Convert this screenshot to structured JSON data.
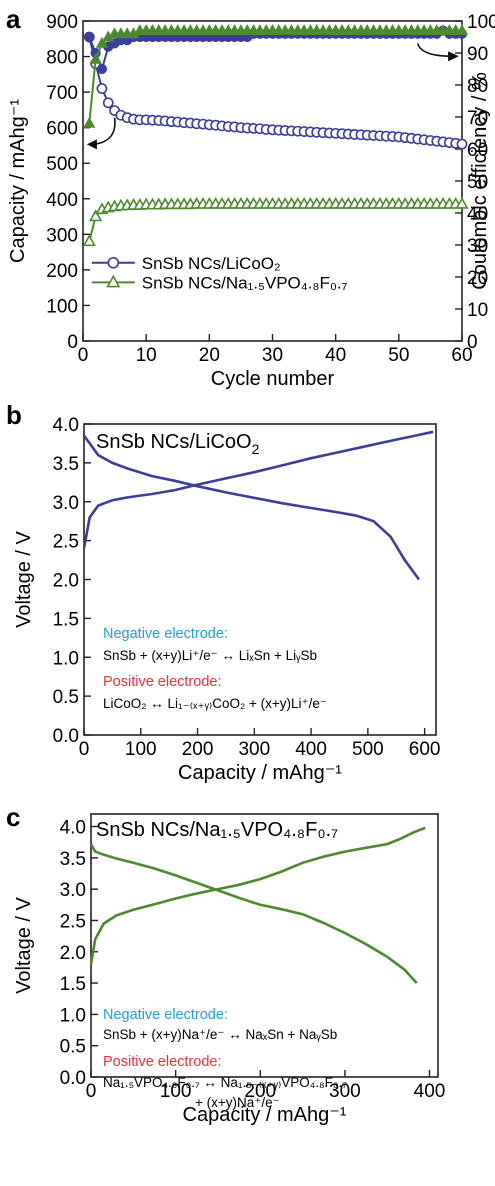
{
  "panels": {
    "a": {
      "letter": "a"
    },
    "b": {
      "letter": "b",
      "title": "SnSb NCs/LiCoO",
      "title_sub": "2",
      "neg_header": "Negative electrode:",
      "neg_eq": "SnSb + (x+y)Li⁺/e⁻ ↔ LiₓSn + LiᵧSb",
      "pos_header": "Positive electrode:",
      "pos_eq": "LiCoO₂ ↔ Li₁₋₍ₓ₊ᵧ₎CoO₂ + (x+y)Li⁺/e⁻"
    },
    "c": {
      "letter": "c",
      "title": "SnSb NCs/Na₁.₅VPO₄.₈F₀.₇",
      "neg_header": "Negative electrode:",
      "neg_eq": "SnSb + (x+y)Na⁺/e⁻ ↔ NaₓSn + NaᵧSb",
      "pos_header": "Positive electrode:",
      "pos_eq1": "Na₁.₅VPO₄.₈F₀.₇ ↔ Na₁.₅₋₍ₓ₊ᵧ₎VPO₄.₈F₀.₇",
      "pos_eq2": "+ (x+y)Na⁺/e⁻"
    }
  },
  "chart_data": [
    {
      "type": "line",
      "xlabel": "Cycle number",
      "ylabel": "Capacity / mAhg⁻¹",
      "y2label": "Coulombic efficiency / %",
      "xlim": [
        0,
        60
      ],
      "ylim": [
        0,
        900
      ],
      "y2lim": [
        0,
        100
      ],
      "x_ticks": [
        0,
        10,
        20,
        30,
        40,
        50,
        60
      ],
      "y_ticks": [
        0,
        100,
        200,
        300,
        400,
        500,
        600,
        700,
        800,
        900
      ],
      "y2_ticks": [
        0,
        10,
        20,
        30,
        40,
        50,
        60,
        70,
        80,
        90,
        100
      ],
      "colors": {
        "licoo2": "#3b3f99",
        "navpof": "#4d8a2f"
      },
      "series": [
        {
          "name": "SnSb NCs/LiCoO₂",
          "axis": "capacity",
          "marker": "circle",
          "x": [
            1,
            2,
            3,
            4,
            5,
            6,
            7,
            8,
            9,
            10,
            11,
            12,
            13,
            14,
            15,
            16,
            17,
            18,
            19,
            20,
            21,
            22,
            23,
            24,
            25,
            26,
            27,
            28,
            29,
            30,
            31,
            32,
            33,
            34,
            35,
            36,
            37,
            38,
            39,
            40,
            41,
            42,
            43,
            44,
            45,
            46,
            47,
            48,
            49,
            50,
            51,
            52,
            53,
            54,
            55,
            56,
            57,
            58,
            59,
            60
          ],
          "y": [
            855,
            780,
            710,
            670,
            648,
            635,
            628,
            624,
            622,
            622,
            621,
            620,
            619,
            617,
            616,
            614,
            613,
            611,
            610,
            608,
            607,
            605,
            603,
            602,
            600,
            599,
            598,
            597,
            595,
            594,
            593,
            592,
            591,
            590,
            589,
            588,
            587,
            586,
            585,
            584,
            583,
            582,
            581,
            580,
            579,
            578,
            577,
            576,
            575,
            574,
            572,
            570,
            568,
            566,
            564,
            562,
            560,
            558,
            556,
            554
          ]
        },
        {
          "name": "SnSb NCs/Na₁.₅VPO₄.₈F₀.₇",
          "axis": "capacity",
          "marker": "triangle",
          "x": [
            1,
            2,
            3,
            4,
            5,
            6,
            7,
            8,
            9,
            10,
            11,
            12,
            13,
            14,
            15,
            16,
            17,
            18,
            19,
            20,
            21,
            22,
            23,
            24,
            25,
            26,
            27,
            28,
            29,
            30,
            31,
            32,
            33,
            34,
            35,
            36,
            37,
            38,
            39,
            40,
            41,
            42,
            43,
            44,
            45,
            46,
            47,
            48,
            49,
            50,
            51,
            52,
            53,
            54,
            55,
            56,
            57,
            58,
            59,
            60
          ],
          "y": [
            280,
            350,
            370,
            375,
            378,
            380,
            381,
            382,
            382,
            383,
            383,
            383,
            384,
            384,
            384,
            384,
            384,
            385,
            385,
            385,
            385,
            385,
            385,
            385,
            385,
            385,
            385,
            385,
            385,
            385,
            385,
            385,
            385,
            385,
            385,
            385,
            385,
            385,
            385,
            385,
            385,
            385,
            385,
            385,
            385,
            385,
            385,
            385,
            385,
            385,
            385,
            385,
            385,
            385,
            385,
            385,
            385,
            385,
            385,
            385
          ]
        },
        {
          "name": "",
          "axis": "efficiency",
          "marker": "circle-filled",
          "x": [
            1,
            2,
            3,
            4,
            5,
            6,
            7,
            8,
            9,
            10,
            11,
            12,
            13,
            14,
            15,
            16,
            17,
            18,
            19,
            20,
            21,
            22,
            23,
            24,
            25,
            26,
            27,
            28,
            29,
            30,
            31,
            32,
            33,
            34,
            35,
            36,
            37,
            38,
            39,
            40,
            41,
            42,
            43,
            44,
            45,
            46,
            47,
            48,
            49,
            50,
            51,
            52,
            53,
            54,
            55,
            56,
            57,
            58,
            59,
            60
          ],
          "y": [
            95,
            90,
            85,
            92,
            93,
            94,
            94,
            95,
            95,
            95,
            95,
            95,
            95,
            95,
            95,
            95,
            95,
            95,
            95,
            95,
            95,
            95,
            95,
            95,
            95,
            95,
            96,
            96,
            96,
            96,
            96,
            96,
            96,
            96,
            96,
            96,
            96,
            96,
            96,
            96,
            96,
            96,
            96,
            96,
            96,
            96,
            96,
            96,
            96,
            96,
            96,
            96,
            96,
            96,
            96,
            96,
            97,
            96,
            96,
            96
          ]
        },
        {
          "name": "",
          "axis": "efficiency",
          "marker": "triangle-filled",
          "x": [
            1,
            2,
            3,
            4,
            5,
            6,
            7,
            8,
            9,
            10,
            11,
            12,
            13,
            14,
            15,
            16,
            17,
            18,
            19,
            20,
            21,
            22,
            23,
            24,
            25,
            26,
            27,
            28,
            29,
            30,
            31,
            32,
            33,
            34,
            35,
            36,
            37,
            38,
            39,
            40,
            41,
            42,
            43,
            44,
            45,
            46,
            47,
            48,
            49,
            50,
            51,
            52,
            53,
            54,
            55,
            56,
            57,
            58,
            59,
            60
          ],
          "y": [
            68,
            88,
            93,
            95,
            96,
            96,
            96,
            96,
            97,
            97,
            97,
            97,
            97,
            97,
            97,
            97,
            97,
            97,
            97,
            97,
            97,
            97,
            97,
            97,
            97,
            97,
            97,
            97,
            97,
            97,
            97,
            97,
            97,
            97,
            97,
            97,
            97,
            97,
            97,
            97,
            97,
            97,
            97,
            97,
            97,
            97,
            97,
            97,
            97,
            97,
            97,
            97,
            97,
            97,
            97,
            97,
            97,
            97,
            97,
            97
          ]
        }
      ]
    },
    {
      "type": "line",
      "xlabel": "Capacity / mAhg⁻¹",
      "ylabel": "Voltage / V",
      "xlim": [
        0,
        620
      ],
      "ylim": [
        0,
        4.0
      ],
      "x_ticks": [
        0,
        100,
        200,
        300,
        400,
        500,
        600
      ],
      "y_ticks": [
        0.0,
        0.5,
        1.0,
        1.5,
        2.0,
        2.5,
        3.0,
        3.5,
        4.0
      ],
      "color": "#3b3f99",
      "series": [
        {
          "name": "",
          "x": [
            0,
            10,
            25,
            50,
            80,
            120,
            160,
            200,
            250,
            300,
            350,
            400,
            450,
            500,
            550,
            590,
            615
          ],
          "y": [
            2.4,
            2.8,
            2.95,
            3.02,
            3.06,
            3.1,
            3.15,
            3.22,
            3.3,
            3.38,
            3.47,
            3.56,
            3.64,
            3.72,
            3.8,
            3.86,
            3.9
          ]
        },
        {
          "name": "",
          "x": [
            0,
            10,
            25,
            50,
            80,
            120,
            160,
            200,
            250,
            300,
            350,
            400,
            450,
            480,
            510,
            540,
            565,
            590
          ],
          "y": [
            3.85,
            3.75,
            3.6,
            3.5,
            3.42,
            3.33,
            3.27,
            3.2,
            3.12,
            3.05,
            2.98,
            2.92,
            2.86,
            2.82,
            2.75,
            2.55,
            2.25,
            2.0
          ]
        }
      ]
    },
    {
      "type": "line",
      "xlabel": "Capacity / mAhg⁻¹",
      "ylabel": "Voltage / V",
      "xlim": [
        0,
        410
      ],
      "ylim": [
        0,
        4.2
      ],
      "x_ticks": [
        0,
        100,
        200,
        300,
        400
      ],
      "y_ticks": [
        0.0,
        0.5,
        1.0,
        1.5,
        2.0,
        2.5,
        3.0,
        3.5,
        4.0
      ],
      "color": "#4d8a2f",
      "series": [
        {
          "name": "",
          "x": [
            0,
            5,
            15,
            30,
            50,
            75,
            100,
            125,
            150,
            175,
            200,
            225,
            250,
            275,
            300,
            325,
            350,
            365,
            380,
            395
          ],
          "y": [
            1.8,
            2.2,
            2.45,
            2.58,
            2.67,
            2.76,
            2.85,
            2.93,
            3.0,
            3.07,
            3.16,
            3.28,
            3.42,
            3.52,
            3.6,
            3.66,
            3.72,
            3.8,
            3.9,
            3.98
          ]
        },
        {
          "name": "",
          "x": [
            0,
            5,
            15,
            30,
            50,
            75,
            100,
            125,
            150,
            175,
            200,
            225,
            250,
            275,
            300,
            325,
            350,
            370,
            385
          ],
          "y": [
            3.72,
            3.6,
            3.55,
            3.49,
            3.42,
            3.33,
            3.22,
            3.1,
            2.98,
            2.86,
            2.75,
            2.68,
            2.6,
            2.46,
            2.3,
            2.12,
            1.92,
            1.72,
            1.5
          ]
        }
      ]
    }
  ]
}
